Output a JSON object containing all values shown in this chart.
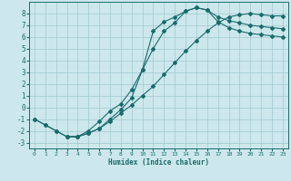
{
  "title": "",
  "xlabel": "Humidex (Indice chaleur)",
  "xlim": [
    -0.5,
    23.5
  ],
  "ylim": [
    -3.5,
    9.0
  ],
  "xticks": [
    0,
    1,
    2,
    3,
    4,
    5,
    6,
    7,
    8,
    9,
    10,
    11,
    12,
    13,
    14,
    15,
    16,
    17,
    18,
    19,
    20,
    21,
    22,
    23
  ],
  "yticks": [
    -3,
    -2,
    -1,
    0,
    1,
    2,
    3,
    4,
    5,
    6,
    7,
    8
  ],
  "bg_color": "#cce8ec",
  "grid_color_major": "#a0c8d0",
  "grid_color_minor": "#b8dce4",
  "line_color": "#1a6b6b",
  "line1_x": [
    0,
    1,
    2,
    3,
    4,
    5,
    6,
    7,
    8,
    9,
    10,
    11,
    12,
    13,
    14,
    15,
    16,
    17,
    18,
    19,
    20,
    21,
    22,
    23
  ],
  "line1_y": [
    -1.0,
    -1.5,
    -2.0,
    -2.5,
    -2.5,
    -2.2,
    -1.8,
    -1.2,
    -0.5,
    0.2,
    1.0,
    1.8,
    2.8,
    3.8,
    4.8,
    5.7,
    6.5,
    7.2,
    7.7,
    7.9,
    8.0,
    7.9,
    7.8,
    7.8
  ],
  "line2_x": [
    0,
    1,
    2,
    3,
    4,
    5,
    6,
    7,
    8,
    9,
    10,
    11,
    12,
    13,
    14,
    15,
    16,
    17,
    18,
    19,
    20,
    21,
    22,
    23
  ],
  "line2_y": [
    -1.0,
    -1.5,
    -2.0,
    -2.5,
    -2.5,
    -2.2,
    -1.8,
    -1.0,
    -0.2,
    0.8,
    3.2,
    6.5,
    7.3,
    7.7,
    8.2,
    8.5,
    8.3,
    7.7,
    7.4,
    7.2,
    7.0,
    6.9,
    6.8,
    6.7
  ],
  "line3_x": [
    3,
    4,
    5,
    6,
    7,
    8,
    9,
    10,
    11,
    12,
    13,
    14,
    15,
    16,
    17,
    18,
    19,
    20,
    21,
    22,
    23
  ],
  "line3_y": [
    -2.5,
    -2.5,
    -2.0,
    -1.2,
    -0.3,
    0.3,
    1.5,
    3.2,
    5.0,
    6.5,
    7.2,
    8.2,
    8.5,
    8.3,
    7.3,
    6.8,
    6.5,
    6.3,
    6.2,
    6.1,
    6.0
  ]
}
